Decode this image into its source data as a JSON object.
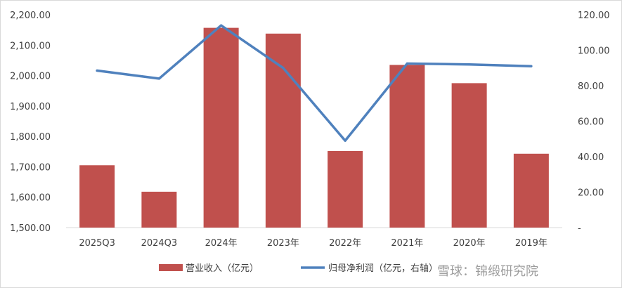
{
  "chart_data": {
    "type": "bar+line",
    "categories": [
      "2025Q3",
      "2024Q3",
      "2024年",
      "2023年",
      "2022年",
      "2021年",
      "2020年",
      "2019年"
    ],
    "series": [
      {
        "name": "营业收入（亿元）",
        "kind": "bar",
        "axis": "left",
        "color": "#c0504d",
        "values": [
          1705,
          1618,
          2157,
          2138,
          1752,
          2035,
          1975,
          1743
        ]
      },
      {
        "name": "归母净利润（亿元，右轴）",
        "kind": "line",
        "axis": "right",
        "color": "#4f81bd",
        "values": [
          88.5,
          84.0,
          114.0,
          90.0,
          49.0,
          92.5,
          92.0,
          91.0
        ]
      }
    ],
    "left_axis": {
      "ylim": [
        1500,
        2200
      ],
      "ticks": [
        "1,500.00",
        "1,600.00",
        "1,700.00",
        "1,800.00",
        "1,900.00",
        "2,000.00",
        "2,100.00",
        "2,200.00"
      ]
    },
    "right_axis": {
      "ylim": [
        0,
        120
      ],
      "ticks": [
        "-",
        "20.00",
        "40.00",
        "60.00",
        "80.00",
        "100.00",
        "120.00"
      ]
    },
    "grid": false,
    "legend_position": "bottom",
    "watermark": "雪球：锦缎研究院"
  }
}
